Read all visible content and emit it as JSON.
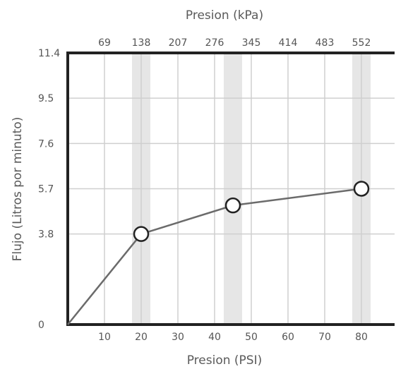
{
  "chart_data": {
    "type": "line",
    "title": "",
    "xlabel": "Presion (PSI)",
    "x2label": "Presion (kPa)",
    "ylabel": "Flujo (Litros por minuto)",
    "x_ticks": [
      10,
      20,
      30,
      40,
      50,
      60,
      70,
      80
    ],
    "x2_ticks": [
      "69",
      "138",
      "207",
      "276",
      "345",
      "414",
      "483",
      "552"
    ],
    "y_ticks": [
      "0",
      "3.8",
      "5.7",
      "7.6",
      "9.5",
      "11.4"
    ],
    "xlim": [
      0,
      89
    ],
    "ylim": [
      0,
      11.4
    ],
    "grid": true,
    "highlight_bands_x": [
      20,
      45,
      80
    ],
    "series": [
      {
        "x": [
          0,
          20,
          45,
          80
        ],
        "y": [
          0,
          3.8,
          5.0,
          5.7
        ],
        "markers": [
          false,
          true,
          true,
          true
        ],
        "color": "#6b6b6b"
      }
    ],
    "colors": {
      "grid": "#cfcfcf",
      "band": "#e6e6e6",
      "axis": "#222222",
      "line": "#6b6b6b"
    }
  }
}
